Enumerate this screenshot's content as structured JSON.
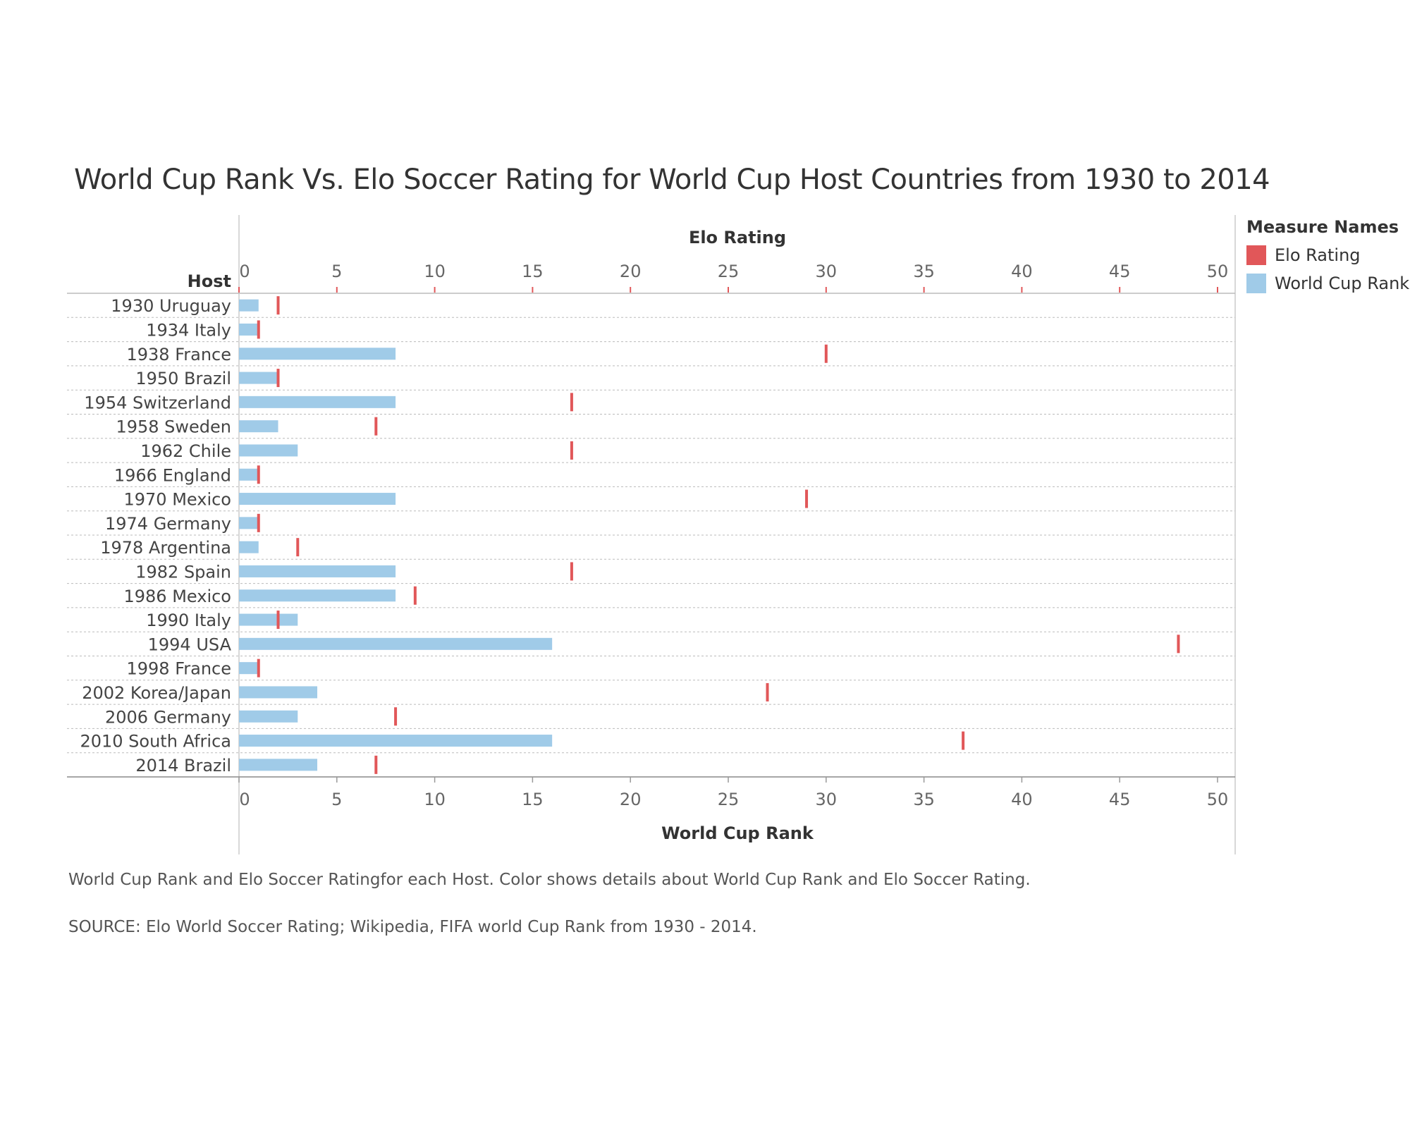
{
  "title": "World Cup Rank Vs. Elo Soccer Rating for World Cup Host Countries from 1930 to 2014",
  "captions": [
    "World Cup Rank and Elo Soccer Ratingfor each Host.  Color shows details about World Cup Rank and Elo Soccer Rating.",
    "SOURCE: Elo World Soccer Rating; Wikipedia, FIFA world Cup Rank from 1930 - 2014."
  ],
  "legend": {
    "title": "Measure Names",
    "items": [
      {
        "label": "Elo Rating",
        "color": "#e15759"
      },
      {
        "label": "World Cup Rank",
        "color": "#a0cbe8"
      }
    ]
  },
  "chart_data": {
    "type": "bar",
    "row_header": "Host",
    "top_axis_label": "Elo Rating",
    "bottom_axis_label": "World Cup Rank",
    "xlim": [
      0,
      50
    ],
    "ticks": [
      0,
      5,
      10,
      15,
      20,
      25,
      30,
      35,
      40,
      45,
      50
    ],
    "grid": true,
    "legend_position": "top-right",
    "categories": [
      "1930 Uruguay",
      "1934 Italy",
      "1938 France",
      "1950 Brazil",
      "1954 Switzerland",
      "1958 Sweden",
      "1962 Chile",
      "1966 England",
      "1970 Mexico",
      "1974 Germany",
      "1978 Argentina",
      "1982 Spain",
      "1986 Mexico",
      "1990 Italy",
      "1994 USA",
      "1998 France",
      "2002 Korea/Japan",
      "2006 Germany",
      "2010 South Africa",
      "2014 Brazil"
    ],
    "series": [
      {
        "name": "World Cup Rank",
        "mark": "bar",
        "color": "#a0cbe8",
        "values": [
          1,
          1,
          8,
          2,
          8,
          2,
          3,
          1,
          8,
          1,
          1,
          8,
          8,
          3,
          16,
          1,
          4,
          3,
          16,
          4
        ]
      },
      {
        "name": "Elo Rating",
        "mark": "tick",
        "color": "#e15759",
        "values": [
          2,
          1,
          30,
          2,
          17,
          7,
          17,
          1,
          29,
          1,
          3,
          17,
          9,
          2,
          48,
          1,
          27,
          8,
          37,
          7
        ]
      }
    ]
  }
}
